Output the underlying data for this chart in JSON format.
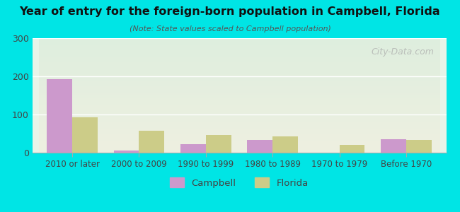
{
  "title": "Year of entry for the foreign-born population in Campbell, Florida",
  "subtitle": "(Note: State values scaled to Campbell population)",
  "categories": [
    "2010 or later",
    "2000 to 2009",
    "1990 to 1999",
    "1980 to 1989",
    "1970 to 1979",
    "Before 1970"
  ],
  "campbell_values": [
    193,
    5,
    22,
    33,
    0,
    35
  ],
  "florida_values": [
    92,
    57,
    47,
    42,
    20,
    33
  ],
  "campbell_color": "#cc99cc",
  "florida_color": "#cccc88",
  "bg_outer": "#00e5e5",
  "bg_plot_top": "#e8f4e8",
  "bg_plot_bottom": "#f5f5e8",
  "ylim": [
    0,
    300
  ],
  "yticks": [
    0,
    100,
    200,
    300
  ],
  "bar_width": 0.38,
  "legend_labels": [
    "Campbell",
    "Florida"
  ]
}
